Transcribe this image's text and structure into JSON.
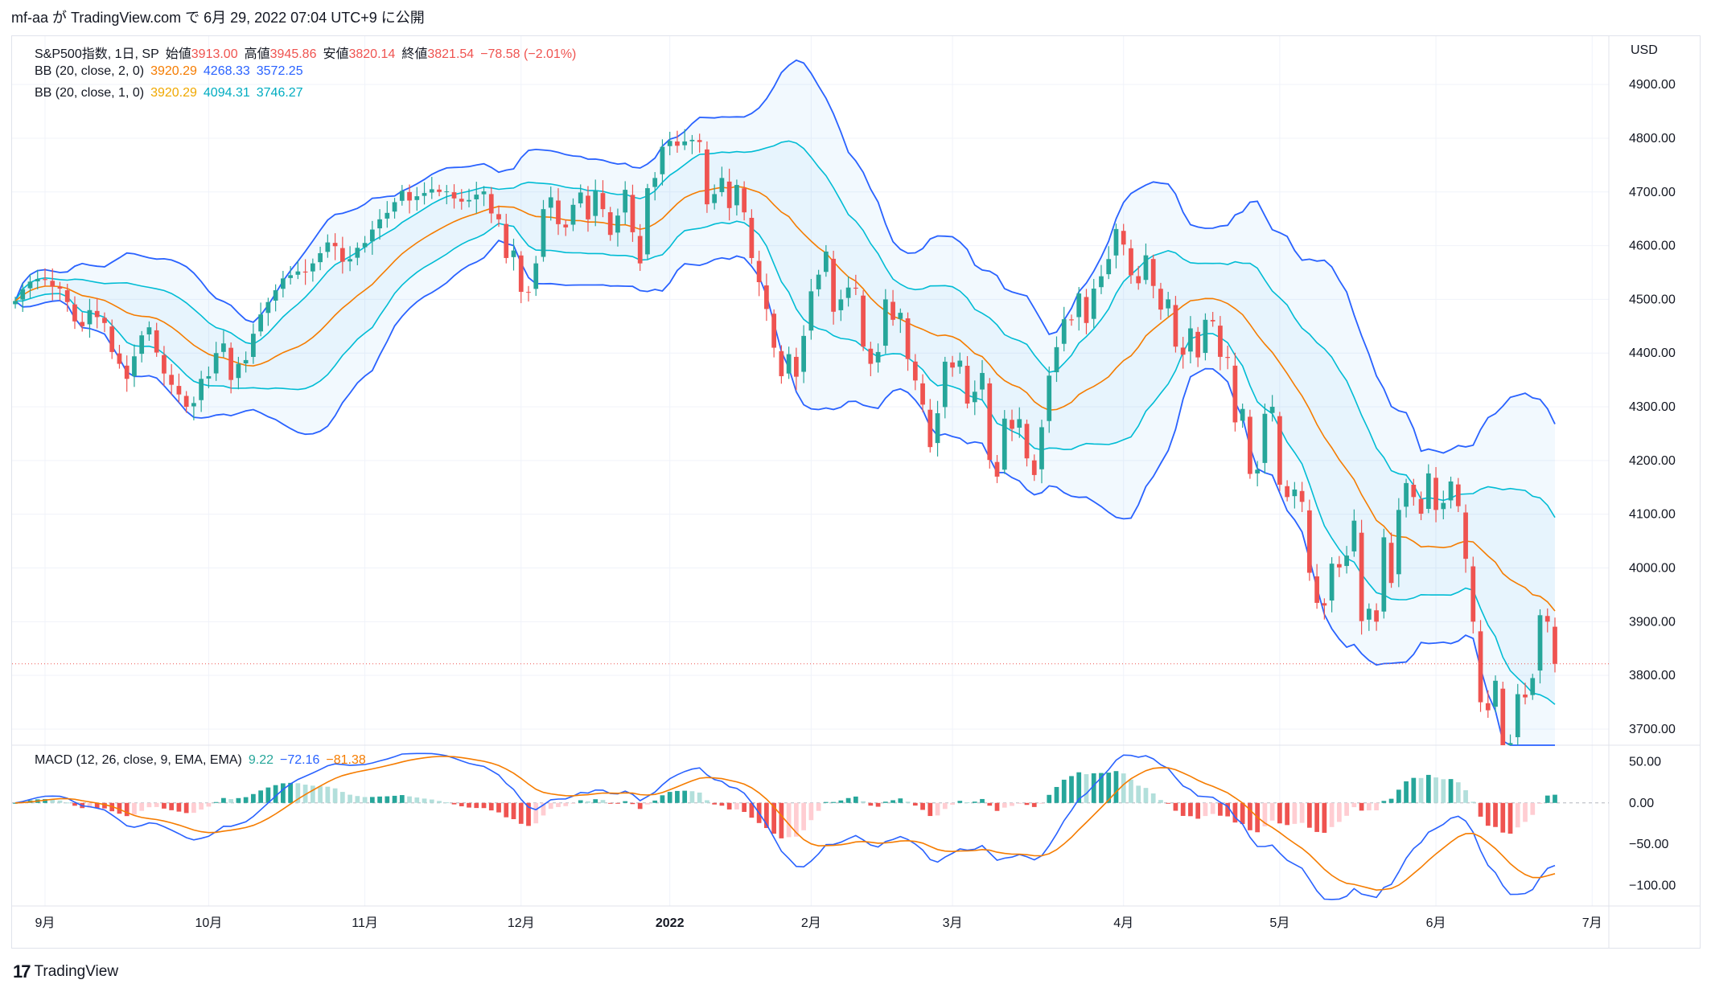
{
  "header": {
    "text": "mf-aa が TradingView.com で 6月 29, 2022 07:04 UTC+9 に公開"
  },
  "footer": {
    "logo": "17",
    "brand": "TradingView"
  },
  "legend": {
    "main": {
      "symbol": "S&P500指数, 1日, SP",
      "open_label": "始値",
      "open": "3913.00",
      "high_label": "高値",
      "high": "3945.86",
      "low_label": "安値",
      "low": "3820.14",
      "close_label": "終値",
      "close": "3821.54",
      "change": "−78.58 (−2.01%)"
    },
    "bb2": {
      "label": "BB (20, close, 2, 0)",
      "basis": "3920.29",
      "upper": "4268.33",
      "lower": "3572.25"
    },
    "bb1": {
      "label": "BB (20, close, 1, 0)",
      "basis": "3920.29",
      "upper": "4094.31",
      "lower": "3746.27"
    },
    "macd": {
      "label": "MACD (12, 26, close, 9, EMA, EMA)",
      "hist": "9.22",
      "macd": "−72.16",
      "signal": "−81.38"
    }
  },
  "colors": {
    "up": "#26a69a",
    "down": "#ef5350",
    "bb2_band": "#2962ff",
    "bb1_band": "#00bcd4",
    "basis": "#f57c00",
    "hist_up_strong": "#26a69a",
    "hist_up_weak": "#b2dfdb",
    "hist_down_strong": "#ef5350",
    "hist_down_weak": "#ffcdd2",
    "price_line": "#ef5350",
    "amber": "#f0a800"
  },
  "chart_data": {
    "type": "candlestick",
    "currency": "USD",
    "price_axis": {
      "ylim": [
        3670,
        4990
      ],
      "ticks": [
        "4900.00",
        "4800.00",
        "4700.00",
        "4600.00",
        "4500.00",
        "4400.00",
        "4300.00",
        "4200.00",
        "4100.00",
        "4000.00",
        "3900.00",
        "3800.00",
        "3700.00"
      ]
    },
    "macd_axis": {
      "ylim": [
        -125,
        70
      ],
      "ticks": [
        "50.00",
        "0.00",
        "−50.00",
        "−100.00"
      ]
    },
    "x_labels": [
      "9月",
      "10月",
      "11月",
      "12月",
      "2022",
      "2月",
      "3月",
      "4月",
      "5月",
      "6月",
      "7月"
    ],
    "x_label_index": [
      4,
      26,
      47,
      68,
      88,
      107,
      126,
      149,
      170,
      191,
      212
    ],
    "last_close": 3821.54,
    "closes": [
      4497,
      4519,
      4533,
      4538,
      4536,
      4524,
      4520,
      4495,
      4459,
      4450,
      4480,
      4467,
      4456,
      4402,
      4380,
      4352,
      4394,
      4433,
      4448,
      4401,
      4362,
      4341,
      4323,
      4300,
      4307,
      4352,
      4357,
      4400,
      4418,
      4350,
      4380,
      4387,
      4436,
      4472,
      4495,
      4517,
      4539,
      4545,
      4552,
      4550,
      4567,
      4586,
      4606,
      4599,
      4570,
      4575,
      4596,
      4605,
      4630,
      4649,
      4661,
      4681,
      4702,
      4684,
      4692,
      4698,
      4705,
      4700,
      4701,
      4688,
      4682,
      4685,
      4695,
      4701,
      4660,
      4649,
      4577,
      4591,
      4514,
      4513,
      4567,
      4668,
      4690,
      4640,
      4634,
      4676,
      4699,
      4649,
      4702,
      4668,
      4620,
      4656,
      4704,
      4625,
      4567,
      4707,
      4726,
      4784,
      4795,
      4786,
      4794,
      4797,
      4793,
      4677,
      4696,
      4726,
      4670,
      4713,
      4662,
      4577,
      4532,
      4482,
      4410,
      4357,
      4398,
      4356,
      4432,
      4515,
      4546,
      4589,
      4477,
      4500,
      4522,
      4520,
      4412,
      4380,
      4402,
      4500,
      4462,
      4475,
      4389,
      4349,
      4304,
      4225,
      4288,
      4384,
      4373,
      4386,
      4306,
      4328,
      4363,
      4201,
      4170,
      4278,
      4259,
      4277,
      4204,
      4173,
      4262,
      4358,
      4411,
      4463,
      4461,
      4511,
      4456,
      4520,
      4543,
      4575,
      4631,
      4602,
      4545,
      4530,
      4582,
      4525,
      4481,
      4500,
      4412,
      4397,
      4446,
      4392,
      4462,
      4459,
      4393,
      4391,
      4271,
      4296,
      4175,
      4183,
      4287,
      4300,
      4155,
      4132,
      4146,
      4123,
      3991,
      3935,
      3930,
      4008,
      4001,
      4023,
      4088,
      3901,
      3924,
      3900,
      4057,
      3972,
      4108,
      4158,
      4132,
      4101,
      4176,
      4108,
      4121,
      4161,
      4115,
      4017,
      3900,
      3750,
      3735,
      3790,
      3667,
      3674,
      3765,
      3759,
      3795,
      3912,
      3900,
      3821.54
    ],
    "bb_params": {
      "length": 20,
      "mult_outer": 2,
      "mult_inner": 1
    },
    "macd_params": {
      "fast": 12,
      "slow": 26,
      "signal": 9
    }
  }
}
